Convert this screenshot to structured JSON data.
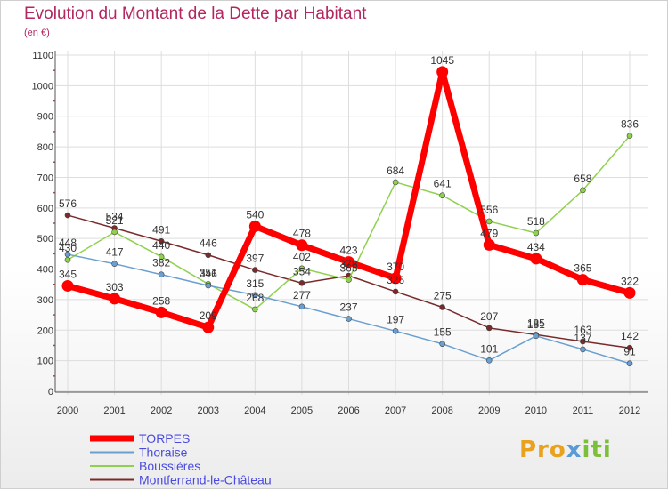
{
  "header": {
    "title": "Evolution du Montant de la Dette par Habitant",
    "subtitle": "(en €)"
  },
  "logo": {
    "text": "Proxiti",
    "parts": [
      "Pro",
      "x",
      "iti"
    ]
  },
  "colors": {
    "title": "#b3265f",
    "legend_text": "#4a4ae0",
    "grid": "#dddddd",
    "axis": "#555555",
    "ticks": "#c04040"
  },
  "chart_data": {
    "type": "line",
    "title": "Evolution du Montant de la Dette par Habitant",
    "ylabel": "(en €)",
    "xlabel": "",
    "x": [
      "2000",
      "2001",
      "2002",
      "2003",
      "2004",
      "2005",
      "2006",
      "2007",
      "2008",
      "2009",
      "2010",
      "2011",
      "2012"
    ],
    "ylim": [
      0,
      1100
    ],
    "yticks": [
      0,
      100,
      200,
      300,
      400,
      500,
      600,
      700,
      800,
      900,
      1000,
      1100
    ],
    "grid": true,
    "legend_position": "bottom-left",
    "series": [
      {
        "name": "Montferrand-le-Château",
        "color": "#7a2a2a",
        "width": 1.5,
        "values": [
          576,
          534,
          491,
          446,
          397,
          354,
          378,
          326,
          275,
          207,
          185,
          163,
          142
        ],
        "labels": [
          "576",
          "534",
          "491",
          "446",
          "397",
          "354",
          "378",
          "326",
          "275",
          "207",
          "185",
          "163",
          "142"
        ]
      },
      {
        "name": "Boussières",
        "color": "#8fd14f",
        "width": 1.5,
        "values": [
          430,
          521,
          440,
          351,
          268,
          402,
          365,
          684,
          641,
          556,
          518,
          658,
          836
        ],
        "labels": [
          "430",
          "521",
          "440",
          "351",
          "268",
          "402",
          "365",
          "684",
          "641",
          "556",
          "518",
          "658",
          "836"
        ]
      },
      {
        "name": "Thoraise",
        "color": "#6a9fd0",
        "width": 1.5,
        "values": [
          448,
          417,
          382,
          346,
          315,
          277,
          237,
          197,
          155,
          101,
          181,
          137,
          91
        ],
        "labels": [
          "448",
          "417",
          "382",
          "346",
          "315",
          "277",
          "237",
          "197",
          "155",
          "101",
          "181",
          "137",
          "91"
        ]
      },
      {
        "name": "TORPES",
        "color": "#ff0000",
        "width": 7,
        "values": [
          345,
          303,
          258,
          209,
          540,
          478,
          423,
          370,
          1045,
          479,
          434,
          365,
          322
        ],
        "labels": [
          "345",
          "303",
          "258",
          "209",
          "540",
          "478",
          "423",
          "370",
          "1045",
          "479",
          "434",
          "365",
          "322"
        ]
      }
    ],
    "legend": [
      "TORPES",
      "Thoraise",
      "Boussières",
      "Montferrand-le-Château"
    ]
  }
}
